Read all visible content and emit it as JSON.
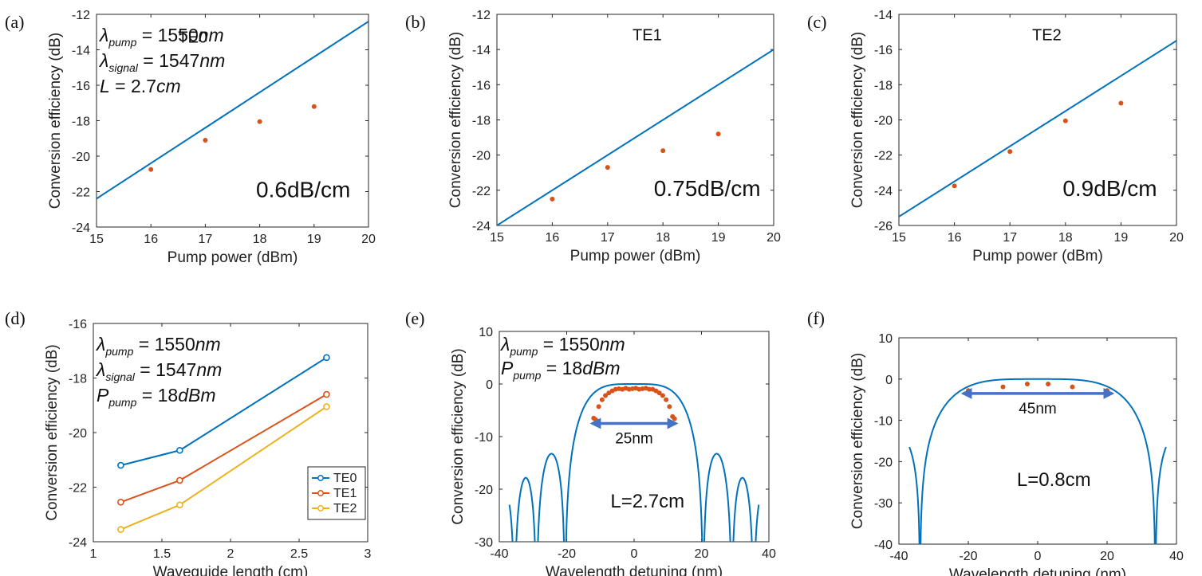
{
  "colors": {
    "blue": "#0072BD",
    "orange": "#D95319",
    "yellow": "#EDB120",
    "red": "#C0282D",
    "arrow": "#4472C4"
  },
  "chart_data": [
    {
      "panel": "(a)",
      "type": "line+scatter",
      "xlabel": "Pump power (dBm)",
      "ylabel": "Conversion efficiency (dB)",
      "xlim": [
        15,
        20
      ],
      "ylim": [
        -24,
        -12
      ],
      "xticks": [
        "15",
        "16",
        "17",
        "18",
        "19",
        "20"
      ],
      "yticks": [
        "-24",
        "-22",
        "-20",
        "-18",
        "-16",
        "-14",
        "-12"
      ],
      "line": {
        "x": [
          15,
          20
        ],
        "y": [
          -22.4,
          -12.4
        ]
      },
      "points": {
        "x": [
          16,
          17,
          18,
          19
        ],
        "y": [
          -20.75,
          -19.1,
          -18.05,
          -17.2
        ]
      },
      "mode_label": "TE0",
      "loss_label": "0.6dB/cm",
      "params": [
        {
          "sym": "λ",
          "sub": "pump",
          "val": "1550nm"
        },
        {
          "sym": "λ",
          "sub": "signal",
          "val": "1547nm"
        },
        {
          "sym": "L",
          "sub": "",
          "val": "2.7cm"
        }
      ]
    },
    {
      "panel": "(b)",
      "type": "line+scatter",
      "xlabel": "Pump power (dBm)",
      "ylabel": "Conversion efficiency (dB)",
      "xlim": [
        15,
        20
      ],
      "ylim": [
        -24,
        -12
      ],
      "xticks": [
        "15",
        "16",
        "17",
        "18",
        "19",
        "20"
      ],
      "yticks": [
        "-24",
        "-22",
        "-20",
        "-18",
        "-16",
        "-14",
        "-12"
      ],
      "line": {
        "x": [
          15,
          20
        ],
        "y": [
          -24,
          -14
        ]
      },
      "points": {
        "x": [
          16,
          17,
          18,
          19
        ],
        "y": [
          -22.5,
          -20.7,
          -19.75,
          -18.8
        ]
      },
      "mode_label": "TE1",
      "loss_label": "0.75dB/cm"
    },
    {
      "panel": "(c)",
      "type": "line+scatter",
      "xlabel": "Pump power (dBm)",
      "ylabel": "Conversion efficiency (dB)",
      "xlim": [
        15,
        20
      ],
      "ylim": [
        -26,
        -14
      ],
      "xticks": [
        "15",
        "16",
        "17",
        "18",
        "19",
        "20"
      ],
      "yticks": [
        "-26",
        "-24",
        "-22",
        "-20",
        "-18",
        "-16",
        "-14"
      ],
      "line": {
        "x": [
          15,
          20
        ],
        "y": [
          -25.5,
          -15.5
        ]
      },
      "points": {
        "x": [
          16,
          17,
          18,
          19
        ],
        "y": [
          -23.75,
          -21.8,
          -20.05,
          -19.05
        ]
      },
      "mode_label": "TE2",
      "loss_label": "0.9dB/cm"
    },
    {
      "panel": "(d)",
      "type": "line",
      "xlabel": "Waveguide length (cm)",
      "ylabel": "Conversion efficiency (dB)",
      "xlim": [
        1,
        3
      ],
      "ylim": [
        -24,
        -16
      ],
      "xticks": [
        "1",
        "1.5",
        "2",
        "2.5",
        "3"
      ],
      "yticks": [
        "-24",
        "-22",
        "-20",
        "-18",
        "-16"
      ],
      "series": [
        {
          "name": "TE0",
          "x": [
            1.2,
            1.63,
            2.7
          ],
          "y": [
            -21.2,
            -20.65,
            -17.25
          ]
        },
        {
          "name": "TE1",
          "x": [
            1.2,
            1.63,
            2.7
          ],
          "y": [
            -22.55,
            -21.75,
            -18.6
          ]
        },
        {
          "name": "TE2",
          "x": [
            1.2,
            1.63,
            2.7
          ],
          "y": [
            -23.55,
            -22.65,
            -19.05
          ]
        }
      ],
      "legend": [
        "TE0",
        "TE1",
        "TE2"
      ],
      "legend_position": "bottom-right",
      "params": [
        {
          "sym": "λ",
          "sub": "pump",
          "val": "1550nm"
        },
        {
          "sym": "λ",
          "sub": "signal",
          "val": "1547nm"
        },
        {
          "sym": "P",
          "sub": "pump",
          "val": "18dBm"
        }
      ]
    },
    {
      "panel": "(e)",
      "type": "line+scatter",
      "xlabel": "Wavelength detuning (nm)",
      "ylabel": "Conversion efficiency (dB)",
      "xlim": [
        -40,
        40
      ],
      "ylim": [
        -30,
        10
      ],
      "xticks": [
        "-40",
        "-20",
        "0",
        "20",
        "40"
      ],
      "yticks": [
        "-30",
        "-20",
        "-10",
        "0",
        "10"
      ],
      "model": {
        "L_cm": 2.7,
        "half_bandwidth_nm": 14.5
      },
      "points": {
        "x": [
          -12,
          -11.4,
          -10.5,
          -9.5,
          -8.5,
          -7.5,
          -6.5,
          -5.5,
          -4.5,
          -3.5,
          -2.5,
          -1.5,
          -0.5,
          0.5,
          1.5,
          2.5,
          3.5,
          4.5,
          5.5,
          6.5,
          7.5,
          8.5,
          9.5,
          10.5,
          11.4,
          12
        ],
        "y": [
          -6.5,
          -6.8,
          -4.3,
          -3,
          -2.2,
          -1.7,
          -1.3,
          -1,
          -0.9,
          -1,
          -0.8,
          -1,
          -0.9,
          -0.8,
          -1,
          -0.9,
          -0.8,
          -1,
          -1,
          -1.3,
          -1.7,
          -2.2,
          -3,
          -4.3,
          -6.2,
          -6.6
        ]
      },
      "bandwidth_label": "25nm",
      "bandwidth_span": [
        -12.5,
        12.5
      ],
      "bandwidth_level": -7.5,
      "length_label": "L=2.7cm",
      "params": [
        {
          "sym": "λ",
          "sub": "pump",
          "val": "1550nm"
        },
        {
          "sym": "P",
          "sub": "pump",
          "val": "18dBm"
        }
      ]
    },
    {
      "panel": "(f)",
      "type": "line+scatter",
      "xlabel": "Wavelength detuning (nm)",
      "ylabel": "Conversion efficiency (dB)",
      "xlim": [
        -40,
        40
      ],
      "ylim": [
        -40,
        10
      ],
      "xticks": [
        "-40",
        "-20",
        "0",
        "20",
        "40"
      ],
      "yticks": [
        "-40",
        "-30",
        "-20",
        "-10",
        "0",
        "10"
      ],
      "model": {
        "L_cm": 0.8,
        "half_bandwidth_nm": 24
      },
      "points": {
        "x": [
          -20,
          -10,
          -3,
          3,
          10,
          20
        ],
        "y": [
          -2.8,
          -1.9,
          -1.2,
          -1.2,
          -1.9,
          -2.8
        ]
      },
      "bandwidth_label": "45nm",
      "bandwidth_span": [
        -21.5,
        21.5
      ],
      "bandwidth_level": -3.5,
      "length_label": "L=0.8cm"
    }
  ]
}
